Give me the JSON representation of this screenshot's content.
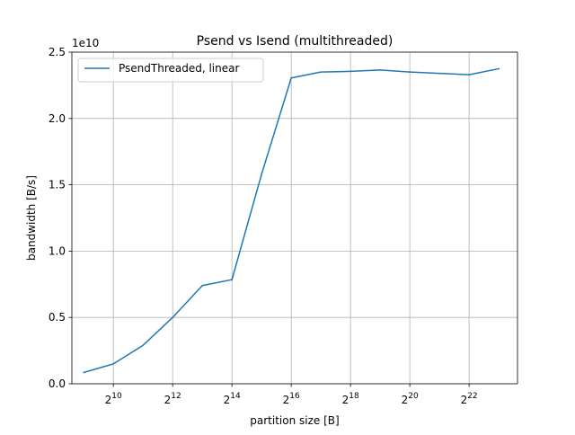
{
  "chart_data": {
    "type": "line",
    "title": "Psend vs Isend (multithreaded)",
    "xlabel": "partition size [B]",
    "ylabel": "bandwidth [B/s]",
    "x_scale": "log2",
    "x_tick_base": "2",
    "x_tick_exponents": [
      "10",
      "12",
      "14",
      "16",
      "18",
      "20",
      "22"
    ],
    "y_tick_labels": [
      "0.0",
      "0.5",
      "1.0",
      "1.5",
      "2.0",
      "2.5"
    ],
    "y_ticks": [
      0,
      5000000000,
      10000000000,
      15000000000,
      20000000000,
      25000000000
    ],
    "y_offset_text": "1e10",
    "xlim": [
      388,
      13010000
    ],
    "ylim": [
      0,
      25000000000
    ],
    "grid": true,
    "legend_position": "upper left",
    "x": [
      512,
      1024,
      2048,
      4096,
      8192,
      16384,
      32768,
      65536,
      131072,
      262144,
      524288,
      1048576,
      2097152,
      4194304,
      8388608
    ],
    "series": [
      {
        "name": "PsendThreaded, linear",
        "color": "#1f77b4",
        "values": [
          850000000,
          1500000000,
          2900000000,
          5000000000,
          7400000000,
          7850000000,
          15800000000,
          23050000000,
          23500000000,
          23550000000,
          23650000000,
          23500000000,
          23400000000,
          23300000000,
          23750000000
        ]
      }
    ]
  }
}
